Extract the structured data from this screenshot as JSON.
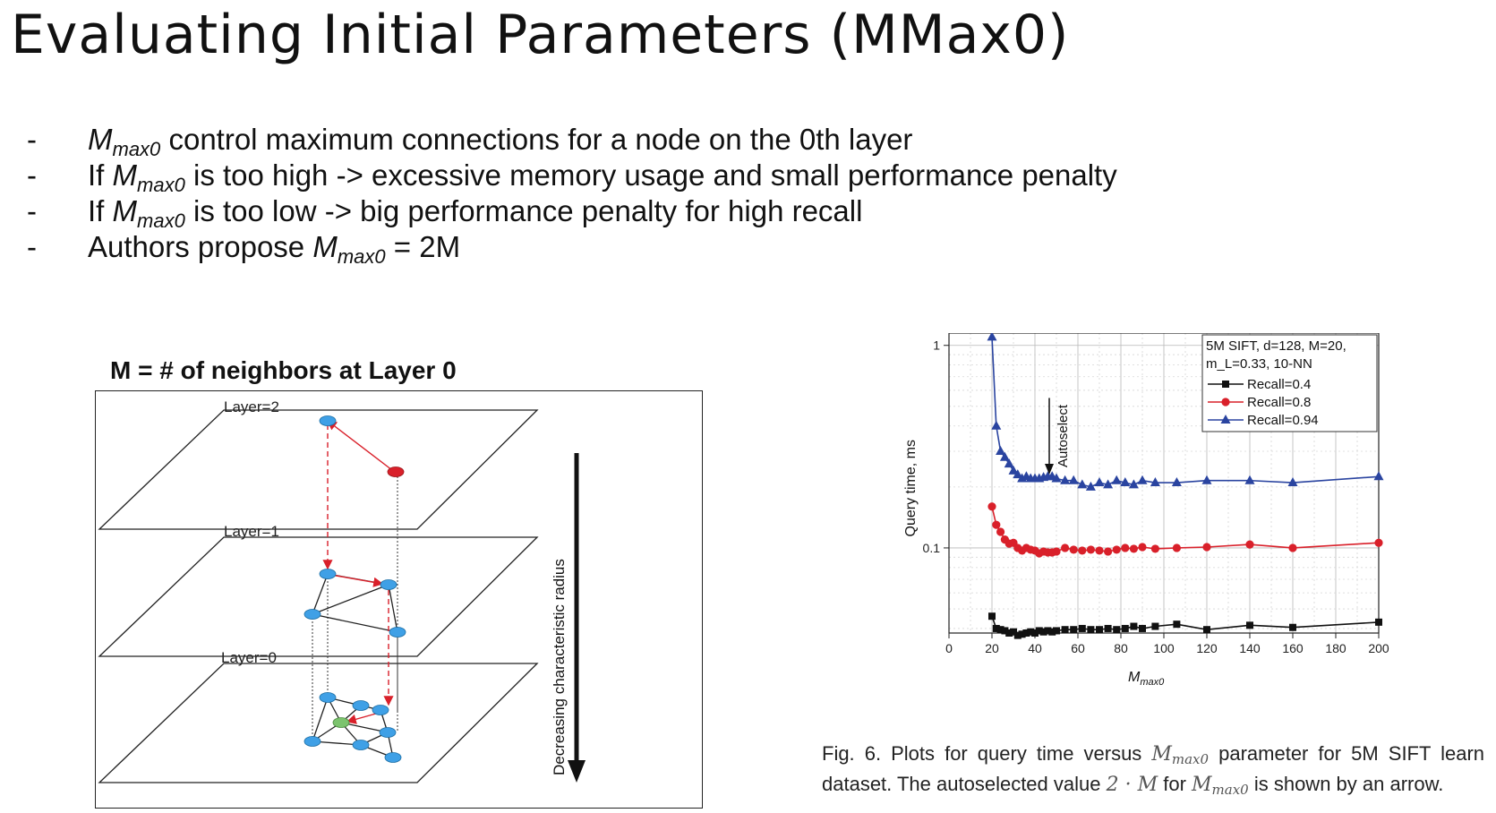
{
  "title": "Evaluating Initial Parameters (MMax0)",
  "bullets": [
    {
      "dash": "-",
      "pre": "",
      "sym": "M",
      "sub": "max0",
      "post": " control maximum connections for a node on the 0th layer"
    },
    {
      "dash": "-",
      "pre": "If ",
      "sym": "M",
      "sub": "max0",
      "post": " is too high -> excessive memory usage and small performance penalty"
    },
    {
      "dash": "-",
      "pre": "If ",
      "sym": "M",
      "sub": "max0",
      "post": " is too low -> big performance penalty for high recall"
    },
    {
      "dash": "-",
      "pre": "Authors propose ",
      "sym": "M",
      "sub": "max0",
      "post": " = 2M"
    }
  ],
  "diagram": {
    "title": "M = # of neighbors at Layer 0",
    "layer_labels": [
      "Layer=2",
      "Layer=1",
      "Layer=0"
    ],
    "arrow_label": "Decreasing characteristic radius",
    "colors": {
      "node": "#3fa0e6",
      "entry": "#d9202a",
      "target": "#7cc36e",
      "edge": "#222222",
      "search": "#d9202a"
    }
  },
  "chart_data": {
    "type": "line",
    "xlabel": "M",
    "xlabel_sub": "max0",
    "ylabel": "Query time, ms",
    "xlim": [
      0,
      200
    ],
    "ylim": [
      0.038,
      1.15
    ],
    "yscale": "log",
    "grid": true,
    "xticks": [
      0,
      20,
      40,
      60,
      80,
      100,
      120,
      140,
      160,
      180,
      200
    ],
    "yticks": [
      {
        "value": 1,
        "label": "1"
      },
      {
        "value": 0.1,
        "label": "0.1"
      }
    ],
    "legend": {
      "position": "top-right",
      "header_line1": "5M SIFT, d=128, M=20,",
      "header_line2": "m_L=0.33, 10-NN"
    },
    "annotation": {
      "text": "Autoselect",
      "x": 40
    },
    "series": [
      {
        "name": "Recall=0.4",
        "color": "#111111",
        "marker": "square",
        "x": [
          20,
          22,
          24,
          26,
          28,
          30,
          32,
          34,
          36,
          38,
          40,
          42,
          44,
          46,
          48,
          50,
          54,
          58,
          62,
          66,
          70,
          74,
          78,
          82,
          86,
          90,
          96,
          106,
          120,
          140,
          160,
          200
        ],
        "y": [
          0.046,
          0.04,
          0.0395,
          0.039,
          0.038,
          0.0385,
          0.037,
          0.0375,
          0.038,
          0.0385,
          0.038,
          0.039,
          0.0385,
          0.039,
          0.0385,
          0.039,
          0.0395,
          0.0395,
          0.04,
          0.0395,
          0.0395,
          0.04,
          0.0395,
          0.04,
          0.041,
          0.04,
          0.041,
          0.042,
          0.0395,
          0.0415,
          0.0405,
          0.043
        ]
      },
      {
        "name": "Recall=0.8",
        "color": "#d9202a",
        "marker": "circle",
        "x": [
          20,
          22,
          24,
          26,
          28,
          30,
          32,
          34,
          36,
          38,
          40,
          42,
          44,
          46,
          48,
          50,
          54,
          58,
          62,
          66,
          70,
          74,
          78,
          82,
          86,
          90,
          96,
          106,
          120,
          140,
          160,
          200
        ],
        "y": [
          0.16,
          0.13,
          0.12,
          0.11,
          0.105,
          0.106,
          0.1,
          0.097,
          0.1,
          0.098,
          0.097,
          0.094,
          0.096,
          0.095,
          0.095,
          0.096,
          0.1,
          0.098,
          0.097,
          0.098,
          0.097,
          0.096,
          0.098,
          0.1,
          0.099,
          0.101,
          0.099,
          0.1,
          0.101,
          0.104,
          0.1,
          0.106
        ]
      },
      {
        "name": "Recall=0.94",
        "color": "#2a44a0",
        "marker": "triangle",
        "x": [
          20,
          22,
          24,
          26,
          28,
          30,
          32,
          34,
          36,
          38,
          40,
          42,
          44,
          46,
          48,
          50,
          54,
          58,
          62,
          66,
          70,
          74,
          78,
          82,
          86,
          90,
          96,
          106,
          120,
          140,
          160,
          200
        ],
        "y": [
          1.1,
          0.4,
          0.3,
          0.28,
          0.26,
          0.24,
          0.23,
          0.22,
          0.225,
          0.22,
          0.22,
          0.22,
          0.223,
          0.225,
          0.225,
          0.22,
          0.215,
          0.215,
          0.205,
          0.2,
          0.21,
          0.205,
          0.215,
          0.21,
          0.205,
          0.215,
          0.21,
          0.21,
          0.215,
          0.215,
          0.21,
          0.225
        ]
      }
    ]
  },
  "caption": {
    "p1": "Fig. 6. Plots for query time versus ",
    "m1": "M",
    "s1": "max0",
    "p2": " parameter for 5M SIFT learn dataset. The autoselected value ",
    "m2": "2 · M",
    "p3": " for ",
    "m3": "M",
    "s3": "max0",
    "p4": " is shown by an arrow."
  }
}
